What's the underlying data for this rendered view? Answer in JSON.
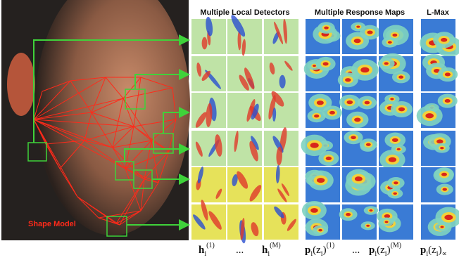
{
  "figure": {
    "headers": {
      "detectors": "Multiple Local Detectors",
      "responses": "Multiple Response Maps",
      "lmax": "L-Max"
    },
    "shape_label": "Shape Model",
    "bottom_labels": {
      "h_first": {
        "main": "h",
        "sub": "i",
        "sup": "(1)"
      },
      "dots_h": "...",
      "h_last": {
        "main": "h",
        "sub": "i",
        "sup": "(M)"
      },
      "p_first": {
        "main": "p",
        "sub": "i",
        "mid": "(z",
        "sub2": "i",
        "end": ")",
        "sup": "(1)"
      },
      "dots_p": "...",
      "p_last": {
        "main": "p",
        "sub": "i",
        "mid": "(z",
        "sub2": "i",
        "end": ")",
        "sup": "(M)"
      },
      "p_max": {
        "main": "p",
        "sub": "i",
        "mid": "(z",
        "sub2": "i",
        "end": ")",
        "sub3": "∝"
      }
    }
  }
}
